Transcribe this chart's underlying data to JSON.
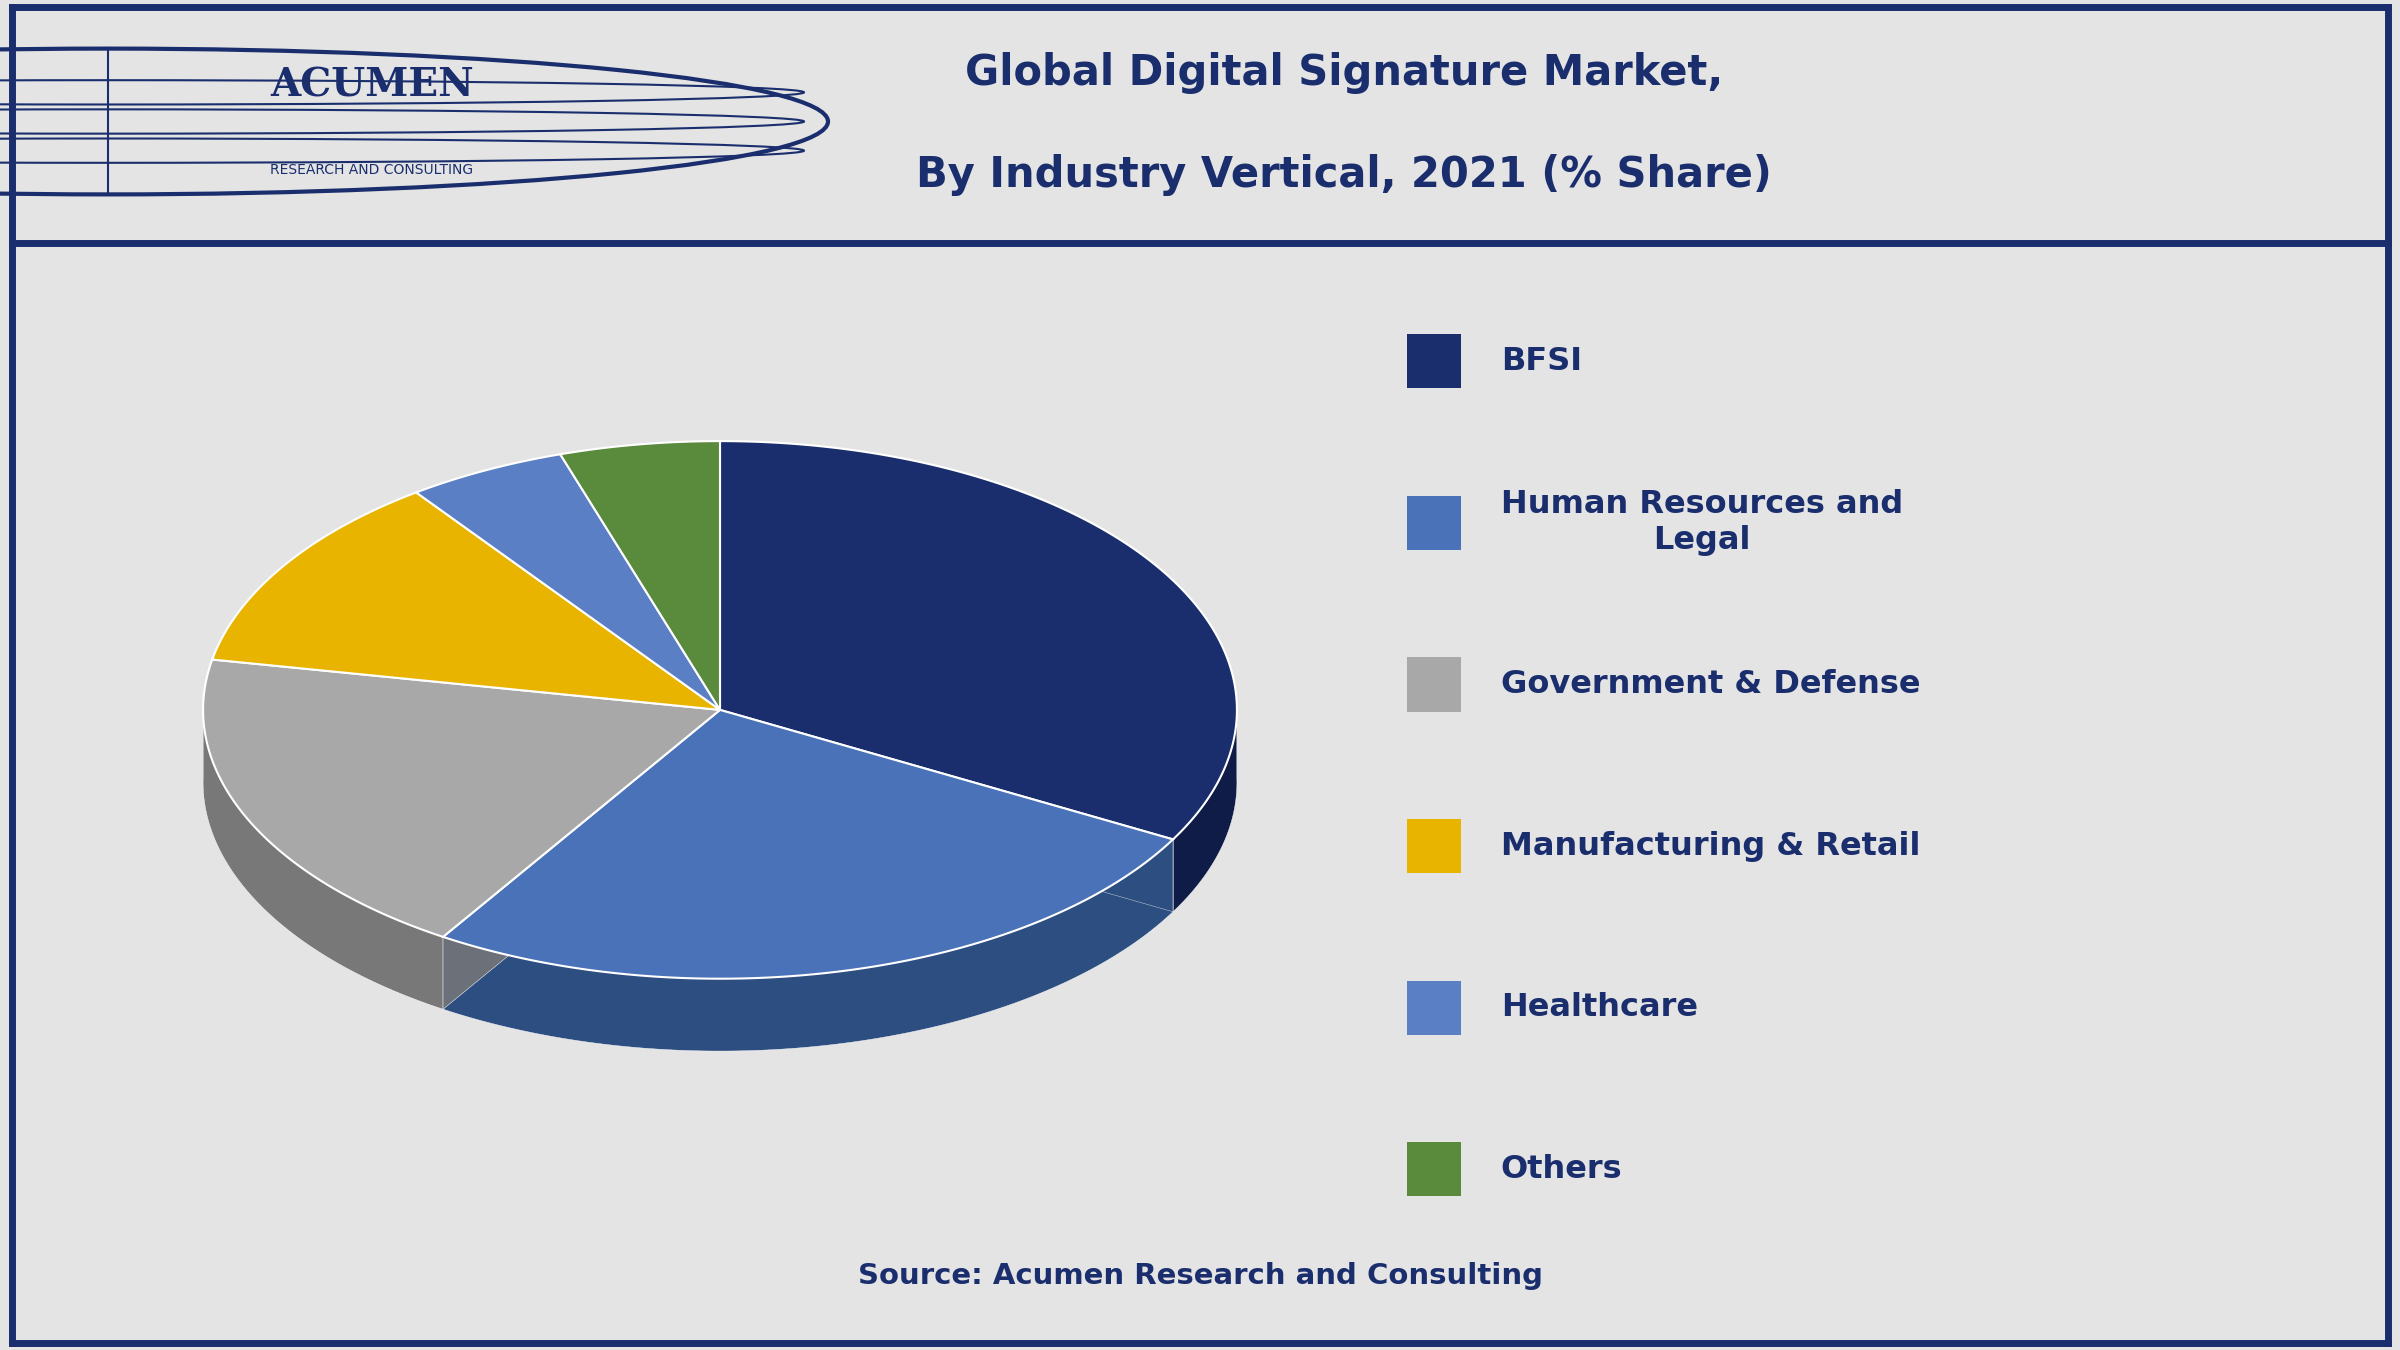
{
  "title_line1": "Global Digital Signature Market,",
  "title_line2": "By Industry Vertical, 2021 (% Share)",
  "source_text": "Source: Acumen Research and Consulting",
  "legend_labels": [
    "BFSI",
    "Human Resources and\nLegal",
    "Government & Defense",
    "Manufacturing & Retail",
    "Healthcare",
    "Others"
  ],
  "values": [
    33,
    26,
    19,
    12,
    5,
    5
  ],
  "colors": [
    "#1a2e6e",
    "#4a72b8",
    "#a8a8a8",
    "#e8b400",
    "#5b7fc4",
    "#5a8a3c"
  ],
  "shadow_colors": [
    "#0e1c47",
    "#2d4e80",
    "#787878",
    "#b08800",
    "#3a5ea0",
    "#3a5c20"
  ],
  "background_color": "#e4e4e4",
  "header_bg_color": "#ffffff",
  "title_color": "#1a2e6e",
  "legend_text_color": "#1a2e6e",
  "source_color": "#1a2e6e",
  "title_fontsize": 30,
  "legend_fontsize": 23,
  "source_fontsize": 21,
  "border_color": "#1a2e6e",
  "startangle": 90,
  "squash": 0.52,
  "depth": 0.14
}
